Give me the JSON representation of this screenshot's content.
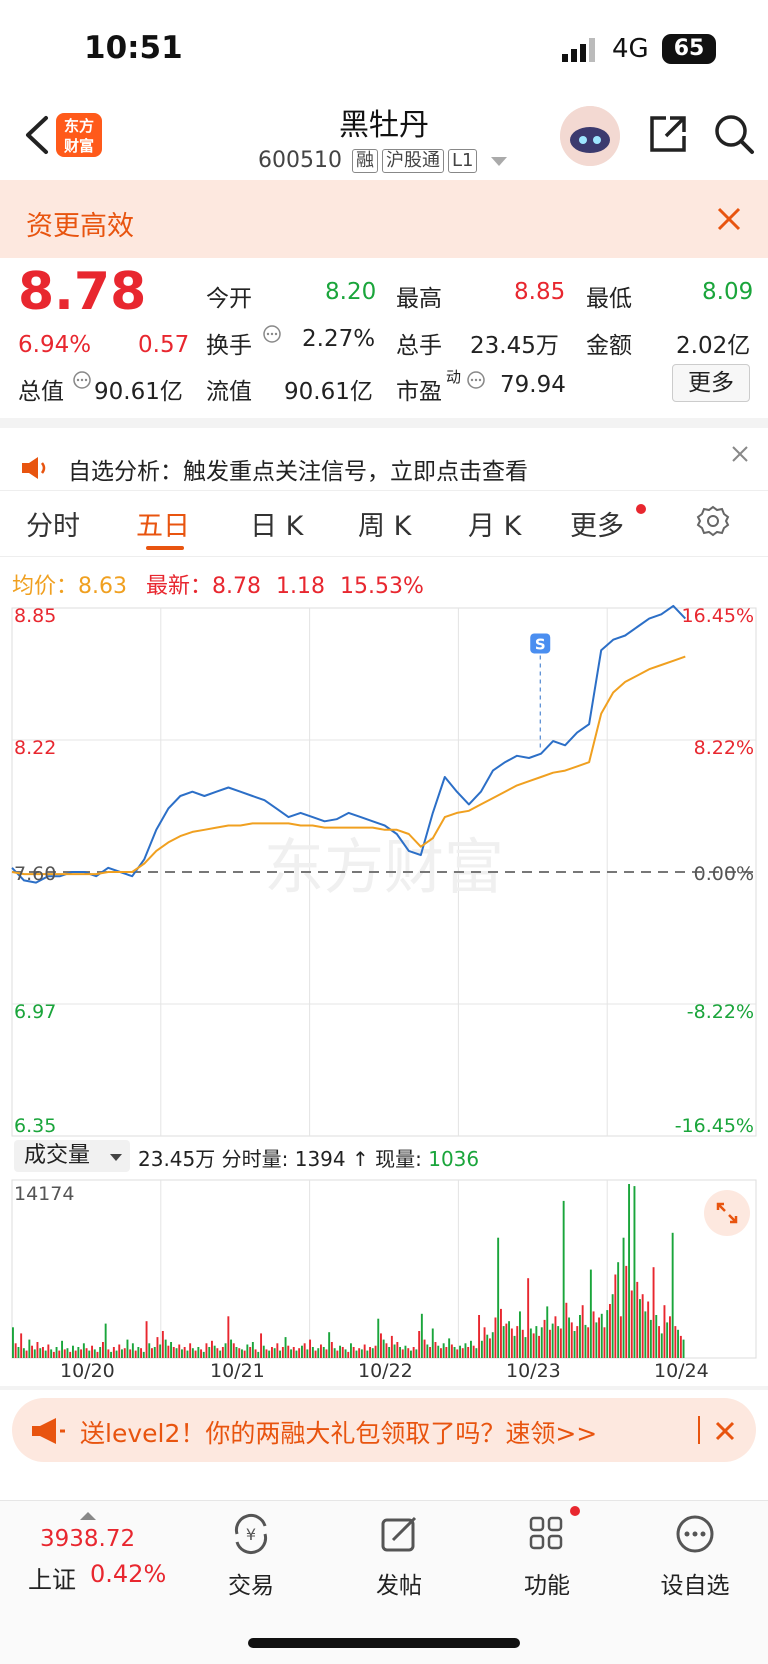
{
  "status_bar": {
    "time": "10:51",
    "network": "4G",
    "battery": "65"
  },
  "header": {
    "logo_line1": "东方",
    "logo_line2": "财富",
    "title": "黑牡丹",
    "code": "600510",
    "tags": [
      "融",
      "沪股通",
      "L1"
    ]
  },
  "banner": {
    "text": "资更高效"
  },
  "quote": {
    "price": "8.78",
    "change_pct": "6.94%",
    "change": "0.57",
    "open_label": "今开",
    "open": "8.20",
    "high_label": "最高",
    "high": "8.85",
    "low_label": "最低",
    "low": "8.09",
    "turnover_label": "换手",
    "turnover": "2.27%",
    "volume_label": "总手",
    "volume": "23.45万",
    "amount_label": "金额",
    "amount": "2.02亿",
    "mktcap_label": "总值",
    "mktcap": "90.61亿",
    "float_label": "流值",
    "float": "90.61亿",
    "pe_label": "市盈",
    "pe_sup": "动",
    "pe": "79.94",
    "more_label": "更多"
  },
  "notice": {
    "text": "自选分析：触发重点关注信号，立即点击查看"
  },
  "tabs": [
    {
      "label": "分时"
    },
    {
      "label": "五日"
    },
    {
      "label": "日 K"
    },
    {
      "label": "周 K"
    },
    {
      "label": "月 K"
    },
    {
      "label": "更多"
    }
  ],
  "summary": {
    "avg_label": "均价：",
    "avg": "8.63",
    "latest_label": "最新：",
    "latest": "8.78",
    "latest_change": "1.18",
    "latest_pct": "15.53%"
  },
  "chart_data": {
    "type": "line",
    "x_labels": [
      "10/20",
      "10/21",
      "10/22",
      "10/23",
      "10/24"
    ],
    "y_left_labels": [
      "8.85",
      "8.22",
      "7.60",
      "6.97",
      "6.35"
    ],
    "y_right_labels": [
      "16.45%",
      "8.22%",
      "0.00%",
      "-8.22%",
      "-16.45%"
    ],
    "ylim": [
      6.35,
      8.85
    ],
    "prev_close": 7.6,
    "watermark": "东方财富",
    "marker_label": "S",
    "series": [
      {
        "values": [
          7.62,
          7.56,
          7.55,
          7.58,
          7.58,
          7.6,
          7.6,
          7.58,
          7.62,
          7.6,
          7.58,
          7.66,
          7.8,
          7.9,
          7.96,
          7.98,
          7.96,
          7.98,
          8.0,
          7.98,
          7.96,
          7.94,
          7.9,
          7.86,
          7.88,
          7.86,
          7.84,
          7.85,
          7.88,
          7.86,
          7.84,
          7.82,
          7.78,
          7.7,
          7.68,
          7.88,
          8.05,
          7.98,
          7.92,
          7.98,
          8.08,
          8.12,
          8.15,
          8.14,
          8.16,
          8.22,
          8.2,
          8.26,
          8.3,
          8.65,
          8.7,
          8.72,
          8.76,
          8.8,
          8.82,
          8.86,
          8.8
        ],
        "color": "#2c6fc7"
      },
      {
        "values": [
          7.6,
          7.59,
          7.59,
          7.59,
          7.59,
          7.59,
          7.59,
          7.59,
          7.6,
          7.6,
          7.6,
          7.64,
          7.7,
          7.74,
          7.77,
          7.79,
          7.8,
          7.81,
          7.82,
          7.82,
          7.83,
          7.83,
          7.83,
          7.83,
          7.82,
          7.82,
          7.81,
          7.81,
          7.81,
          7.81,
          7.81,
          7.8,
          7.8,
          7.78,
          7.72,
          7.76,
          7.86,
          7.88,
          7.89,
          7.92,
          7.95,
          7.98,
          8.01,
          8.03,
          8.05,
          8.07,
          8.08,
          8.1,
          8.12,
          8.35,
          8.45,
          8.5,
          8.53,
          8.56,
          8.58,
          8.6,
          8.62
        ],
        "color": "#f0a020"
      }
    ]
  },
  "volume": {
    "selector": "成交量",
    "total": "23.45万",
    "tick_label": "分时量:",
    "tick_value": "1394",
    "now_label": "现量:",
    "now_value": "1036",
    "max_label": "14174"
  },
  "volume_data": {
    "ylim": [
      0,
      14174
    ],
    "values": [
      2500,
      1200,
      900,
      2000,
      800,
      600,
      1500,
      1000,
      700,
      1300,
      800,
      900,
      600,
      1100,
      700,
      500,
      900,
      600,
      1400,
      700,
      800,
      500,
      1000,
      600,
      900,
      700,
      1200,
      800,
      600,
      1000,
      700,
      500,
      900,
      1300,
      2800,
      700,
      500,
      900,
      600,
      1100,
      700,
      800,
      1500,
      700,
      1200,
      600,
      900,
      800,
      500,
      3000,
      1200,
      800,
      900,
      1700,
      1100,
      2200,
      1500,
      1000,
      1300,
      900,
      800,
      1100,
      700,
      900,
      600,
      1200,
      800,
      600,
      900,
      700,
      500,
      1200,
      900,
      1400,
      1000,
      800,
      600,
      900,
      1200,
      3400,
      1500,
      1200,
      900,
      800,
      700,
      600,
      1100,
      900,
      1300,
      700,
      500,
      2000,
      1000,
      700,
      600,
      900,
      800,
      1200,
      600,
      900,
      1700,
      1000,
      700,
      900,
      600,
      800,
      1000,
      1200,
      700,
      1500,
      900,
      600,
      800,
      1100,
      900,
      700,
      2100,
      1300,
      800,
      600,
      1000,
      900,
      700,
      500,
      1200,
      900,
      600,
      800,
      700,
      1100,
      600,
      900,
      800,
      1000,
      3200,
      2000,
      1500,
      1200,
      900,
      1800,
      1100,
      1300,
      900,
      700,
      1000,
      800,
      600,
      900,
      700,
      2200,
      3600,
      1500,
      1100,
      900,
      2400,
      1300,
      1000,
      800,
      1200,
      900,
      1600,
      1100,
      900,
      700,
      1000,
      800,
      1200,
      900,
      1400,
      1000,
      800,
      3500,
      1400,
      2500,
      1900,
      1600,
      2100,
      3300,
      9800,
      4000,
      2600,
      2800,
      3000,
      2400,
      1800,
      2600,
      3800,
      2300,
      1700,
      6500,
      2400,
      2000,
      2600,
      1800,
      2500,
      3100,
      4200,
      2300,
      2800,
      3400,
      2600,
      2400,
      12800,
      4500,
      3300,
      2900,
      2200,
      2600,
      3500,
      4300,
      2700,
      2500,
      7200,
      3800,
      2900,
      3300,
      3600,
      2500,
      3900,
      4400,
      5200,
      6800,
      7800,
      3400,
      9800,
      7500,
      14174,
      5500,
      14000,
      6200,
      4800,
      5200,
      3800,
      4600,
      3100,
      7400,
      3500,
      2600,
      2000,
      4300,
      2900,
      3400,
      10200,
      2600,
      2300,
      1800,
      1500
    ],
    "colors": [
      "#1aa53b",
      "#e8272f"
    ]
  },
  "promo": {
    "text": "送level2！你的两融大礼包领取了吗？速领>>"
  },
  "bottom_bar": {
    "index_value": "3938.72",
    "index_name": "上证",
    "index_pct": "0.42%",
    "items": [
      "交易",
      "发帖",
      "功能",
      "设自选"
    ]
  }
}
